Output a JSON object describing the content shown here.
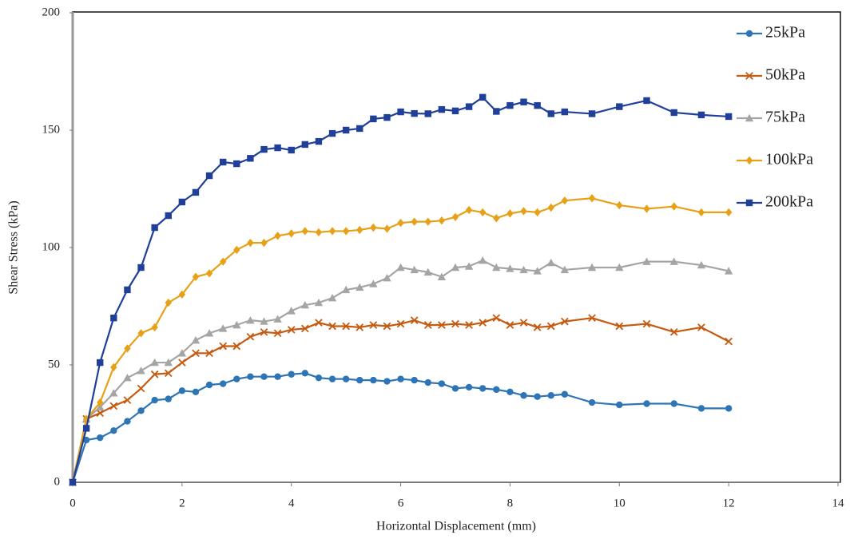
{
  "chart_data": {
    "type": "line",
    "x_label": "Horizontal Displacement (mm)",
    "y_label": "Shear Stress (kPa)",
    "x": [
      0,
      0.25,
      0.5,
      0.75,
      1,
      1.25,
      1.5,
      1.75,
      2,
      2.25,
      2.5,
      2.75,
      3,
      3.25,
      3.5,
      3.75,
      4,
      4.25,
      4.5,
      4.75,
      5,
      5.25,
      5.5,
      5.75,
      6,
      6.25,
      6.5,
      6.75,
      7,
      7.25,
      7.5,
      7.75,
      8,
      8.25,
      8.5,
      8.75,
      9,
      9.5,
      10,
      10.5,
      11,
      11.5,
      12
    ],
    "series": [
      {
        "name": "25kPa",
        "color": "#2e75b6",
        "marker": "circle",
        "values": [
          0,
          18,
          19,
          22,
          26,
          30.5,
          35,
          35.5,
          39,
          38.5,
          41.5,
          42,
          44,
          45,
          45,
          45,
          46,
          46.5,
          44.5,
          44,
          44,
          43.5,
          43.5,
          43,
          44,
          43.5,
          42.5,
          42,
          40,
          40.5,
          40,
          39.5,
          38.5,
          37,
          36.5,
          37,
          37.5,
          34,
          33,
          33.5,
          33.5,
          31.5,
          31.5
        ]
      },
      {
        "name": "50kPa",
        "color": "#c55a11",
        "marker": "x",
        "values": [
          0,
          27,
          29.5,
          32.5,
          35,
          40,
          46,
          46.5,
          51,
          55,
          55,
          58,
          58,
          62,
          64,
          63.5,
          65,
          65.5,
          68,
          66.5,
          66.5,
          66,
          67,
          66.5,
          67.5,
          69,
          67,
          67,
          67.5,
          67,
          68,
          70,
          67,
          68,
          66,
          66.5,
          68.5,
          70,
          66.5,
          67.5,
          64,
          66,
          60
        ]
      },
      {
        "name": "75kPa",
        "color": "#a5a5a5",
        "marker": "triangle",
        "values": [
          0,
          27,
          32,
          38,
          44.5,
          47.5,
          51,
          51,
          55,
          60.5,
          63.5,
          65.5,
          67,
          69,
          68.5,
          69.5,
          73,
          75.5,
          76.5,
          78.5,
          82,
          83,
          84.5,
          87,
          91.5,
          90.5,
          89.5,
          87.5,
          91.5,
          92,
          94.5,
          91.5,
          91,
          90.5,
          90,
          93.5,
          90.5,
          91.5,
          91.5,
          94,
          94,
          92.5,
          90
        ]
      },
      {
        "name": "100kPa",
        "color": "#e6a118",
        "marker": "diamond",
        "values": [
          0,
          27,
          34,
          49,
          57,
          63.5,
          66,
          76.5,
          80,
          87.5,
          89,
          94,
          99,
          102,
          102,
          105,
          106,
          107,
          106.5,
          107,
          107,
          107.5,
          108.5,
          108,
          110.5,
          111,
          111,
          111.5,
          113,
          116,
          115,
          112.5,
          114.5,
          115.5,
          115,
          117,
          120,
          121,
          118,
          116.5,
          117.5,
          115,
          115
        ]
      },
      {
        "name": "200kPa",
        "color": "#1f3f99",
        "marker": "square",
        "values": [
          0,
          23,
          51,
          70,
          82,
          91.5,
          108.5,
          113.6,
          119.4,
          123.5,
          130.6,
          136.4,
          135.7,
          138,
          141.8,
          142.5,
          141.5,
          143.9,
          145.2,
          148.6,
          150,
          150.7,
          154.8,
          155.4,
          157.8,
          157.1,
          157,
          158.8,
          158.2,
          160,
          164,
          158,
          160.5,
          162,
          160.5,
          157,
          157.8,
          157,
          160,
          162.6,
          157.5,
          156.5,
          155.8
        ]
      }
    ],
    "xlim": [
      0,
      14
    ],
    "xticks": [
      0,
      2,
      4,
      6,
      8,
      10,
      12,
      14
    ],
    "ylim": [
      0,
      200
    ],
    "yticks": [
      0,
      50,
      100,
      150,
      200
    ],
    "legend": "top-right"
  }
}
